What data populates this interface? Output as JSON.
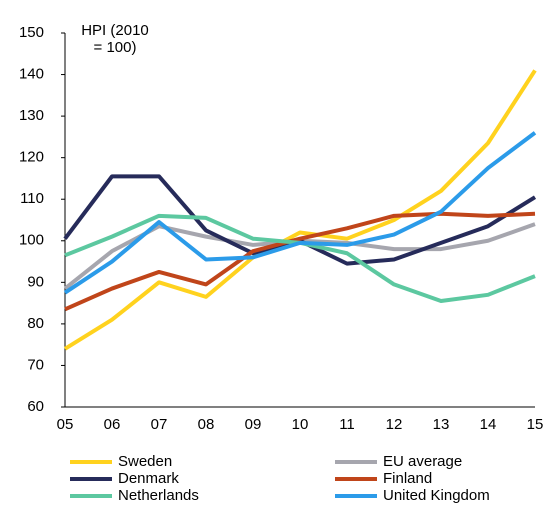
{
  "chart_data": {
    "type": "line",
    "y_label": "HPI (2010 = 100)",
    "categories": [
      "05",
      "06",
      "07",
      "08",
      "09",
      "10",
      "11",
      "12",
      "13",
      "14",
      "15"
    ],
    "series": [
      {
        "name": "Sweden",
        "color": "#ffd21e",
        "values": [
          74,
          81,
          90,
          86.5,
          96,
          102,
          100.5,
          105,
          112,
          123.5,
          141
        ]
      },
      {
        "name": "EU average",
        "color": "#a6a6ae",
        "values": [
          88.5,
          97.5,
          103.5,
          101,
          99,
          100,
          99.5,
          98,
          98,
          100,
          104
        ]
      },
      {
        "name": "Denmark",
        "color": "#262b5a",
        "values": [
          100.5,
          115.5,
          115.5,
          102.5,
          97,
          100,
          94.5,
          95.5,
          99.5,
          103.5,
          110.5
        ]
      },
      {
        "name": "Finland",
        "color": "#c0451a",
        "values": [
          83.5,
          88.5,
          92.5,
          89.5,
          97.5,
          100.5,
          103,
          106,
          106.5,
          106,
          106.5
        ]
      },
      {
        "name": "Netherlands",
        "color": "#5cc8a0",
        "values": [
          96.5,
          101,
          106,
          105.5,
          100.5,
          99.5,
          97,
          89.5,
          85.5,
          87,
          91.5
        ]
      },
      {
        "name": "United Kingdom",
        "color": "#2b9be9",
        "values": [
          87.5,
          95,
          104.5,
          95.5,
          96,
          99.5,
          99,
          101.5,
          107,
          117.5,
          126
        ]
      }
    ],
    "ylim": [
      60,
      150
    ],
    "yticks": [
      60,
      70,
      80,
      90,
      100,
      110,
      120,
      130,
      140,
      150
    ]
  }
}
